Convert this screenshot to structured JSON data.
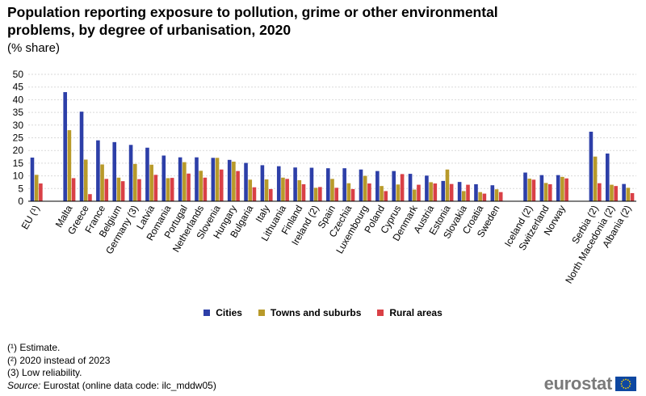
{
  "header": {
    "title": "Population reporting exposure to pollution, grime or other environmental problems, by degree of urbanisation, 2020",
    "subtitle": "(% share)"
  },
  "legend": {
    "cities": "Cities",
    "towns": "Towns and suburbs",
    "rural": "Rural areas"
  },
  "footnotes": {
    "note1": "(¹) Estimate.",
    "note2": "(²) 2020 instead of 2023",
    "note3": "(3) Low reliability.",
    "source_label": "Source:",
    "source_text": " Eurostat (online data code: ilc_mddw05)"
  },
  "branding": {
    "logo_text": "eurostat"
  },
  "colors": {
    "cities": "#2d3fa8",
    "towns": "#b89a2a",
    "rural": "#d94046",
    "grid": "#d9d9d9",
    "axis": "#000000"
  },
  "chart_data": {
    "type": "bar",
    "title": "Population reporting exposure to pollution, grime or other environmental problems, by degree of urbanisation, 2020",
    "subtitle": "(% share)",
    "ylim": [
      0,
      50
    ],
    "yticks": [
      0,
      5,
      10,
      15,
      20,
      25,
      30,
      35,
      40,
      45,
      50
    ],
    "grid": true,
    "legend_position": "bottom",
    "categories": [
      "EU (¹)",
      "",
      "Malta",
      "Greece",
      "France",
      "Belgium",
      "Germany (3)",
      "Latvia",
      "Romania",
      "Portugal",
      "Netherlands",
      "Slovenia",
      "Hungary",
      "Bulgaria",
      "Italy",
      "Lithuania",
      "Finland",
      "Ireland (2)",
      "Spain",
      "Czechia",
      "Luxembourg",
      "Poland",
      "Cyprus",
      "Denmark",
      "Austria",
      "Estonia",
      "Slovakia",
      "Croatia",
      "Sweden",
      "",
      "Iceland (2)",
      "Switzerland",
      "Norway",
      "",
      "Serbia (2)",
      "North Macedonia (2)",
      "Albania (2)"
    ],
    "series": [
      {
        "name": "Cities",
        "values": [
          17.2,
          null,
          43.0,
          35.3,
          24.0,
          23.3,
          22.2,
          21.1,
          18.0,
          17.3,
          17.3,
          17.1,
          16.3,
          15.1,
          14.2,
          13.8,
          13.3,
          13.2,
          13.0,
          13.0,
          12.5,
          11.9,
          11.9,
          10.8,
          10.1,
          8.0,
          7.6,
          6.7,
          6.3,
          null,
          11.3,
          10.3,
          10.3,
          null,
          27.4,
          18.8,
          6.8
        ]
      },
      {
        "name": "Towns and suburbs",
        "values": [
          10.4,
          null,
          28.0,
          16.4,
          14.5,
          9.3,
          14.7,
          14.4,
          9.1,
          15.4,
          12.0,
          17.1,
          15.6,
          8.5,
          8.6,
          9.3,
          8.3,
          5.3,
          8.8,
          7.1,
          10.0,
          6.0,
          6.6,
          4.6,
          7.5,
          12.5,
          4.0,
          3.6,
          4.7,
          null,
          8.9,
          7.2,
          9.6,
          null,
          17.6,
          6.5,
          5.3
        ]
      },
      {
        "name": "Rural areas",
        "values": [
          7.0,
          null,
          9.1,
          2.8,
          8.8,
          7.9,
          8.7,
          10.4,
          9.2,
          10.9,
          9.3,
          12.5,
          11.9,
          5.5,
          4.8,
          8.8,
          6.7,
          5.6,
          5.3,
          4.8,
          7.0,
          4.0,
          10.7,
          6.5,
          7.0,
          6.8,
          6.5,
          3.0,
          3.6,
          null,
          8.5,
          6.7,
          9.0,
          null,
          7.1,
          6.0,
          3.2
        ]
      }
    ]
  }
}
